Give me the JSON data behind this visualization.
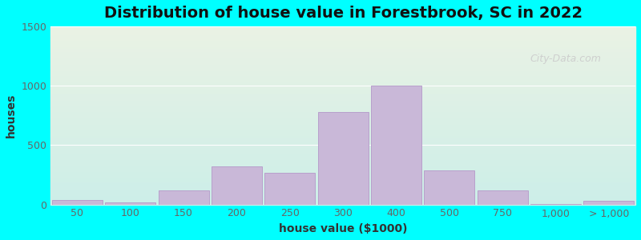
{
  "title": "Distribution of house value in Forestbrook, SC in 2022",
  "xlabel": "house value ($1000)",
  "ylabel": "houses",
  "bar_color": "#c9b8d8",
  "bar_edgecolor": "#b8a0cc",
  "background_top": "#eaf2e4",
  "background_bottom": "#cceee8",
  "outer_bg": "#00ffff",
  "ylim": [
    0,
    1500
  ],
  "yticks": [
    0,
    500,
    1000,
    1500
  ],
  "bar_labels": [
    "50",
    "100",
    "150",
    "200",
    "250",
    "300",
    "400",
    "500",
    "750",
    "1,000",
    "> 1,000"
  ],
  "bar_positions": [
    0,
    1,
    2,
    3,
    4,
    5,
    6,
    7,
    8,
    9,
    10
  ],
  "bar_heights": [
    40,
    15,
    120,
    320,
    270,
    780,
    1000,
    290,
    120,
    5,
    30
  ],
  "title_fontsize": 14,
  "label_fontsize": 10,
  "tick_fontsize": 9,
  "watermark_text": "City-Data.com"
}
